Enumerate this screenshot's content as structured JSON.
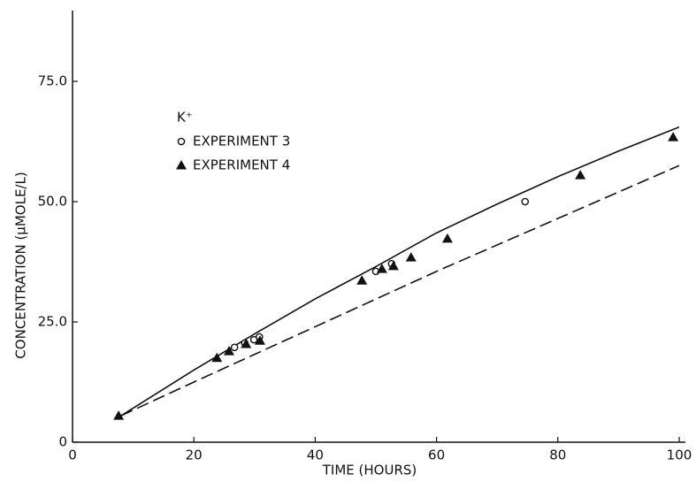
{
  "chart_data": {
    "type": "scatter",
    "xlabel": "TIME (HOURS)",
    "ylabel": "CONCENTRATION (μMOLE/L)",
    "legend_title": "K⁺",
    "xlim": [
      0,
      100
    ],
    "xticks": [
      0,
      20,
      40,
      60,
      80,
      100
    ],
    "ylim": [
      0,
      90
    ],
    "yticks": [
      0,
      {
        "value": 25,
        "label": "25.0"
      },
      {
        "value": 50,
        "label": "50.0"
      },
      {
        "value": 75,
        "label": "75.0"
      }
    ],
    "series": [
      {
        "name": "EXPERIMENT 3",
        "color": "#111111",
        "marker": "circle",
        "x": [
          26.7,
          28.4,
          29.9,
          30.8,
          50,
          52.6,
          74.6
        ],
        "values": [
          19.7,
          20.6,
          21.3,
          21.9,
          35.5,
          37.1,
          50
        ]
      },
      {
        "name": "EXPERIMENT 4",
        "color": "#111111",
        "marker": "triangle",
        "x": [
          7.6,
          23.8,
          25.8,
          28.6,
          30.9,
          47.7,
          51,
          52.9,
          55.8,
          61.8,
          83.7,
          99
        ],
        "values": [
          5.5,
          17.5,
          18.9,
          20.4,
          21.1,
          33.6,
          36,
          36.6,
          38.4,
          42.3,
          55.5,
          63.4
        ]
      }
    ],
    "curves": [
      {
        "style": "solid",
        "color": "#111111",
        "x": [
          8,
          20,
          30,
          40,
          50,
          60,
          70,
          80,
          90,
          100
        ],
        "values": [
          5.5,
          15,
          22.5,
          29.8,
          36.5,
          43.5,
          49.5,
          55.2,
          60.5,
          65.5
        ]
      },
      {
        "style": "dashed",
        "color": "#111111",
        "x": [
          8,
          20,
          40,
          60,
          80,
          100
        ],
        "values": [
          5.5,
          12.5,
          24,
          35.5,
          46.5,
          57.5
        ]
      }
    ]
  }
}
